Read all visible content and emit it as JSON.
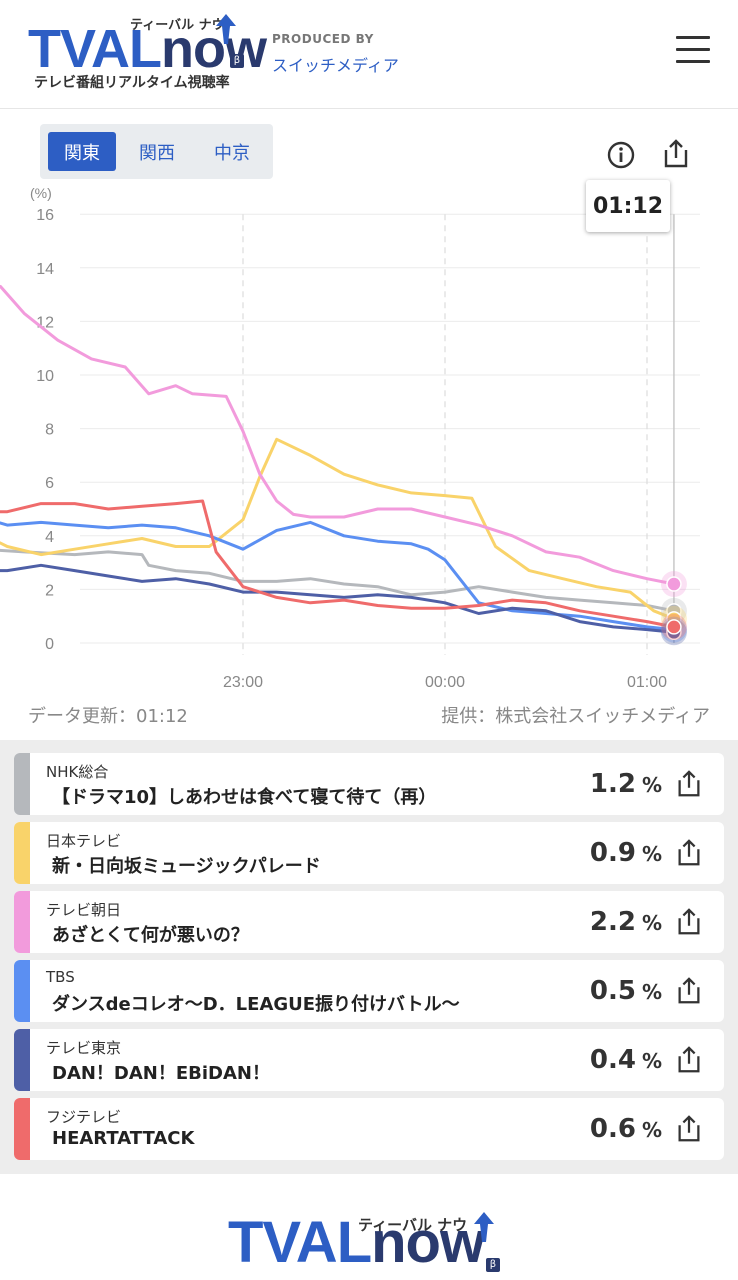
{
  "header": {
    "logo_main_a": "TVAL",
    "logo_main_b": "now",
    "logo_kana": "ティーバル ナウ",
    "logo_beta": "β",
    "logo_sub": "テレビ番組リアルタイム視聴率",
    "produced_by": "PRODUCED BY",
    "producer": "スイッチメディア"
  },
  "region_tabs": [
    {
      "label": "関東",
      "active": true
    },
    {
      "label": "関西",
      "active": false
    },
    {
      "label": "中京",
      "active": false
    }
  ],
  "tooltip_time": "01:12",
  "updated": "データ更新：01:12",
  "credit": "提供：株式会社スイッチメディア",
  "chart_data": {
    "type": "line",
    "ylabel": "(%)",
    "ylim": [
      0,
      16
    ],
    "y_ticks": [
      0,
      2,
      4,
      6,
      8,
      10,
      12,
      14,
      16
    ],
    "x_tick_labels": [
      "23:00",
      "00:00",
      "01:00"
    ],
    "x_range_minutes": [
      -78,
      72
    ],
    "x_ticks_minutes": [
      0,
      60,
      120
    ],
    "grid": true,
    "series": [
      {
        "name": "NHK総合",
        "color": "#b5b8bc",
        "x": [
          -78,
          -65,
          -50,
          -40,
          -30,
          -28,
          -20,
          -10,
          0,
          10,
          20,
          30,
          40,
          50,
          60,
          70,
          80,
          90,
          100,
          110,
          120,
          128
        ],
        "y": [
          3.5,
          3.4,
          3.3,
          3.4,
          3.3,
          2.9,
          2.7,
          2.6,
          2.3,
          2.3,
          2.4,
          2.2,
          2.1,
          1.8,
          1.9,
          2.1,
          1.9,
          1.7,
          1.6,
          1.5,
          1.4,
          1.2
        ]
      },
      {
        "name": "日本テレビ",
        "color": "#f9d36a",
        "x": [
          -78,
          -70,
          -60,
          -50,
          -40,
          -30,
          -20,
          -10,
          -5,
          0,
          5,
          10,
          20,
          30,
          40,
          50,
          60,
          68,
          75,
          85,
          95,
          105,
          115,
          122,
          128
        ],
        "y": [
          4.1,
          3.6,
          3.3,
          3.5,
          3.7,
          3.9,
          3.6,
          3.6,
          4.1,
          4.6,
          6.2,
          7.6,
          7.0,
          6.3,
          5.9,
          5.6,
          5.5,
          5.4,
          3.6,
          2.7,
          2.4,
          2.1,
          1.9,
          1.2,
          0.9
        ]
      },
      {
        "name": "テレビ朝日",
        "color": "#f29bdc",
        "x": [
          -78,
          -72,
          -65,
          -55,
          -45,
          -35,
          -28,
          -20,
          -15,
          -5,
          0,
          5,
          10,
          15,
          20,
          30,
          40,
          50,
          60,
          70,
          80,
          90,
          100,
          110,
          120,
          128
        ],
        "y": [
          13.5,
          13.3,
          12.3,
          11.3,
          10.6,
          10.3,
          9.3,
          9.6,
          9.3,
          9.2,
          7.9,
          6.3,
          5.3,
          4.8,
          4.7,
          4.7,
          5.0,
          5.0,
          4.7,
          4.4,
          4.0,
          3.4,
          3.2,
          2.7,
          2.4,
          2.2
        ]
      },
      {
        "name": "TBS",
        "color": "#5b8ff2",
        "x": [
          -78,
          -70,
          -60,
          -50,
          -40,
          -30,
          -20,
          -10,
          0,
          10,
          20,
          30,
          40,
          50,
          55,
          60,
          70,
          80,
          90,
          100,
          110,
          120,
          128
        ],
        "y": [
          4.7,
          4.4,
          4.5,
          4.4,
          4.3,
          4.4,
          4.3,
          4.0,
          3.5,
          4.2,
          4.5,
          4.0,
          3.8,
          3.7,
          3.5,
          3.1,
          1.5,
          1.2,
          1.1,
          1.0,
          0.8,
          0.6,
          0.5
        ]
      },
      {
        "name": "テレビ東京",
        "color": "#4e5fa6",
        "x": [
          -78,
          -70,
          -60,
          -50,
          -40,
          -30,
          -20,
          -10,
          0,
          10,
          20,
          30,
          40,
          50,
          60,
          70,
          80,
          90,
          100,
          110,
          120,
          128
        ],
        "y": [
          2.7,
          2.7,
          2.9,
          2.7,
          2.5,
          2.3,
          2.4,
          2.2,
          1.9,
          1.9,
          1.8,
          1.7,
          1.8,
          1.7,
          1.5,
          1.1,
          1.3,
          1.2,
          0.8,
          0.6,
          0.5,
          0.4
        ]
      },
      {
        "name": "フジテレビ",
        "color": "#ef6b6b",
        "x": [
          -78,
          -70,
          -60,
          -50,
          -40,
          -30,
          -20,
          -12,
          -8,
          0,
          10,
          20,
          30,
          40,
          50,
          60,
          70,
          80,
          90,
          100,
          110,
          120,
          128
        ],
        "y": [
          4.9,
          4.9,
          5.2,
          5.2,
          5.0,
          5.1,
          5.2,
          5.3,
          3.4,
          2.1,
          1.7,
          1.5,
          1.6,
          1.4,
          1.3,
          1.3,
          1.4,
          1.6,
          1.5,
          1.2,
          1.0,
          0.8,
          0.6
        ]
      }
    ]
  },
  "programs": [
    {
      "station": "NHK総合",
      "program": "【ドラマ10】しあわせは食べて寝て待て（再）",
      "value": "1.2",
      "unit": "%",
      "color": "#b5b8bc"
    },
    {
      "station": "日本テレビ",
      "program": "新・日向坂ミュージックパレード",
      "value": "0.9",
      "unit": "%",
      "color": "#f9d36a"
    },
    {
      "station": "テレビ朝日",
      "program": "あざとくて何が悪いの？",
      "value": "2.2",
      "unit": "%",
      "color": "#f29bdc"
    },
    {
      "station": "TBS",
      "program": "ダンスdeコレオ〜D．LEAGUE振り付けバトル〜",
      "value": "0.5",
      "unit": "%",
      "color": "#5b8ff2"
    },
    {
      "station": "テレビ東京",
      "program": "DAN！DAN！EBiDAN！",
      "value": "0.4",
      "unit": "%",
      "color": "#4e5fa6"
    },
    {
      "station": "フジテレビ",
      "program": "HEARTATTACK",
      "value": "0.6",
      "unit": "%",
      "color": "#ef6b6b"
    }
  ],
  "icons": {
    "info": "info-icon",
    "share": "share-icon",
    "menu": "hamburger-menu-icon"
  }
}
